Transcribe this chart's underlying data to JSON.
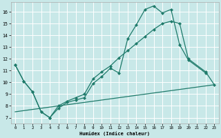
{
  "xlabel": "Humidex (Indice chaleur)",
  "background_color": "#c8e8e8",
  "grid_color": "#ffffff",
  "line_color": "#1e7a6a",
  "xlim": [
    -0.5,
    23.5
  ],
  "ylim": [
    6.5,
    16.8
  ],
  "xticks": [
    0,
    1,
    2,
    3,
    4,
    5,
    6,
    7,
    8,
    9,
    10,
    11,
    12,
    13,
    14,
    15,
    16,
    17,
    18,
    19,
    20,
    21,
    22,
    23
  ],
  "yticks": [
    7,
    8,
    9,
    10,
    11,
    12,
    13,
    14,
    15,
    16
  ],
  "line1_x": [
    0,
    1,
    2,
    3,
    4,
    5,
    6,
    7,
    8,
    9,
    10,
    11,
    12,
    13,
    14,
    15,
    16,
    17,
    18,
    19,
    20,
    22
  ],
  "line1_y": [
    11.5,
    10.1,
    9.2,
    7.5,
    7.0,
    7.8,
    8.3,
    8.5,
    8.7,
    9.9,
    10.5,
    11.2,
    10.8,
    13.7,
    14.9,
    16.2,
    16.5,
    15.9,
    16.2,
    13.2,
    11.9,
    10.8
  ],
  "line2_x": [
    0,
    1,
    2,
    3,
    4,
    5,
    6,
    7,
    8,
    9,
    10,
    11,
    12,
    13,
    14,
    15,
    16,
    17,
    18,
    19,
    20,
    22,
    23
  ],
  "line2_y": [
    11.5,
    10.1,
    9.2,
    7.5,
    7.0,
    8.0,
    8.4,
    8.7,
    9.0,
    10.3,
    10.9,
    11.4,
    12.1,
    12.7,
    13.3,
    13.9,
    14.5,
    15.0,
    15.2,
    15.0,
    12.0,
    10.9,
    9.8
  ],
  "line3_x": [
    0,
    1,
    2,
    3,
    4,
    5,
    6,
    7,
    8,
    9,
    10,
    11,
    12,
    13,
    14,
    15,
    16,
    17,
    18,
    19,
    20,
    21,
    22,
    23
  ],
  "line3_y": [
    7.5,
    7.6,
    7.7,
    7.8,
    7.9,
    8.0,
    8.1,
    8.2,
    8.3,
    8.4,
    8.5,
    8.6,
    8.7,
    8.8,
    8.9,
    9.0,
    9.1,
    9.2,
    9.3,
    9.4,
    9.5,
    9.6,
    9.7,
    9.8
  ]
}
